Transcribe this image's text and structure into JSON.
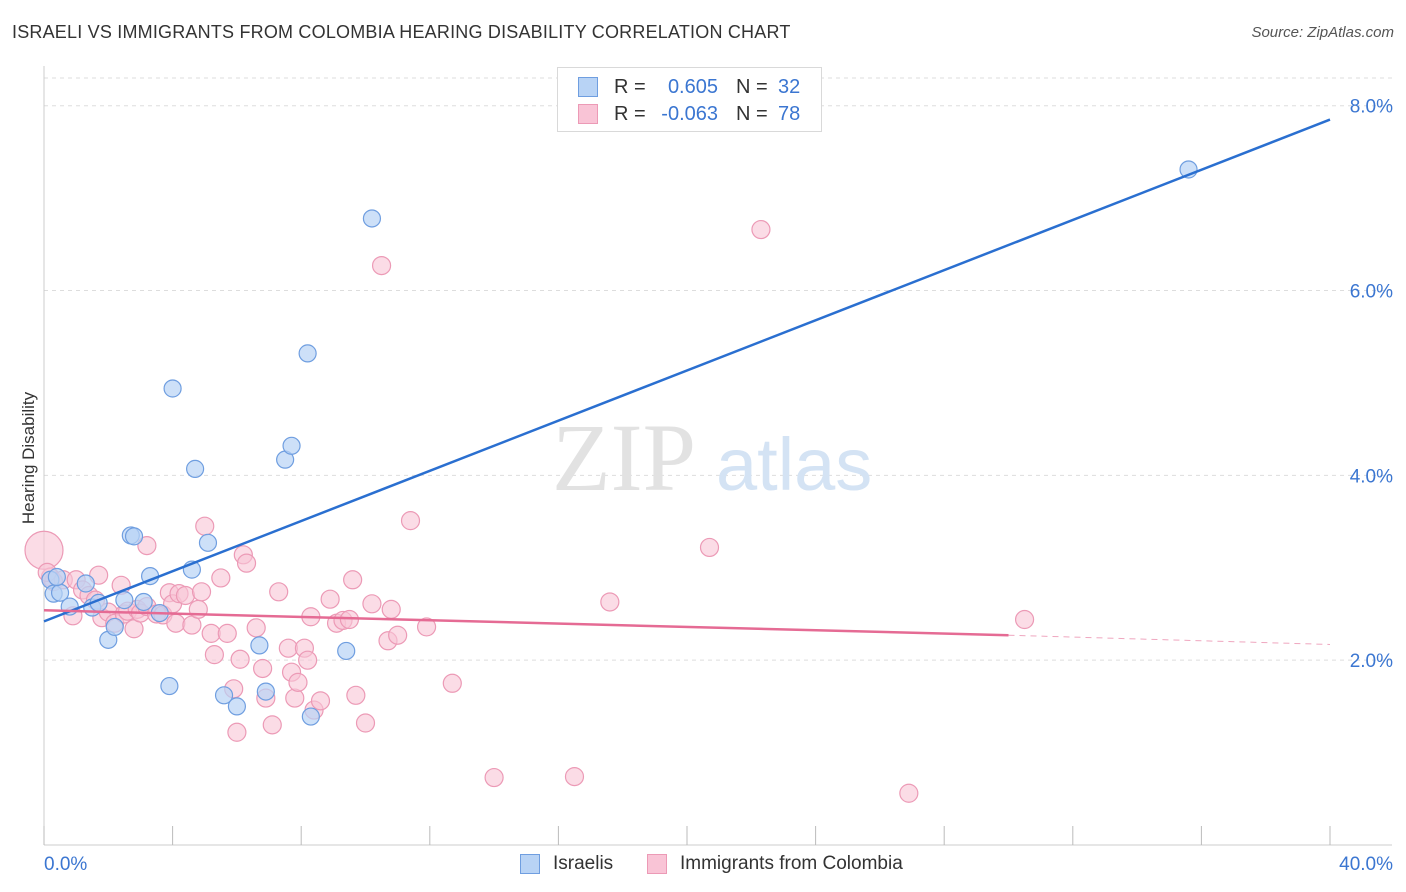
{
  "title": "ISRAELI VS IMMIGRANTS FROM COLOMBIA HEARING DISABILITY CORRELATION CHART",
  "source": "Source: ZipAtlas.com",
  "watermark": {
    "zip": "ZIP",
    "atlas": "atlas"
  },
  "colors": {
    "blue": "#3b76d1",
    "blue_fill": "#b8d3f5",
    "blue_line": "#2a6fd0",
    "pink": "#e8739b",
    "pink_fill": "#f9c4d6",
    "pink_line": "#e56b94",
    "grid": "#dddddd",
    "axis_text": "#3b76d1"
  },
  "legend": {
    "rows": [
      {
        "r_label": "R =",
        "r_value": "0.605",
        "n_label": "N =",
        "n_value": "32"
      },
      {
        "r_label": "R =",
        "r_value": "-0.063",
        "n_label": "N =",
        "n_value": "78"
      }
    ]
  },
  "bottom_legend": {
    "israelis": "Israelis",
    "colombia": "Immigrants from Colombia"
  },
  "chart_data": {
    "type": "scatter",
    "title": "ISRAELI VS IMMIGRANTS FROM COLOMBIA HEARING DISABILITY CORRELATION CHART",
    "xlabel": "",
    "ylabel": "Hearing Disability",
    "xlim": [
      0,
      40
    ],
    "ylim": [
      0,
      8.3
    ],
    "x_ticks_labeled": [
      "0.0%",
      "40.0%"
    ],
    "y_ticks": [
      2.0,
      4.0,
      6.0,
      8.0
    ],
    "y_tick_labels": [
      "2.0%",
      "4.0%",
      "6.0%",
      "8.0%"
    ],
    "grid": true,
    "series": [
      {
        "name": "Israelis",
        "trend": {
          "x": [
            0,
            40
          ],
          "y": [
            2.42,
            7.85
          ]
        },
        "points": [
          [
            0.2,
            2.87
          ],
          [
            0.3,
            2.72
          ],
          [
            0.5,
            2.73
          ],
          [
            0.8,
            2.58
          ],
          [
            1.3,
            2.83
          ],
          [
            1.5,
            2.57
          ],
          [
            1.7,
            2.62
          ],
          [
            2.0,
            2.22
          ],
          [
            2.2,
            2.36
          ],
          [
            2.5,
            2.65
          ],
          [
            2.7,
            3.35
          ],
          [
            2.8,
            3.34
          ],
          [
            3.1,
            2.63
          ],
          [
            3.3,
            2.91
          ],
          [
            3.6,
            2.51
          ],
          [
            3.9,
            1.72
          ],
          [
            4.0,
            4.94
          ],
          [
            4.6,
            2.98
          ],
          [
            4.7,
            4.07
          ],
          [
            5.1,
            3.27
          ],
          [
            5.6,
            1.62
          ],
          [
            6.0,
            1.5
          ],
          [
            6.7,
            2.16
          ],
          [
            6.9,
            1.66
          ],
          [
            7.5,
            4.17
          ],
          [
            7.7,
            4.32
          ],
          [
            8.2,
            5.32
          ],
          [
            8.3,
            1.39
          ],
          [
            9.4,
            2.1
          ],
          [
            10.2,
            6.78
          ],
          [
            35.6,
            7.31
          ],
          [
            0.4,
            2.9
          ]
        ]
      },
      {
        "name": "Immigrants from Colombia",
        "trend": {
          "x": [
            0,
            30
          ],
          "y": [
            2.54,
            2.27
          ]
        },
        "trend_dashed": {
          "x": [
            30,
            40
          ],
          "y": [
            2.27,
            2.17
          ]
        },
        "points": [
          [
            0.0,
            3.19
          ],
          [
            0.2,
            2.9
          ],
          [
            0.3,
            2.85
          ],
          [
            0.6,
            2.87
          ],
          [
            0.9,
            2.48
          ],
          [
            1.0,
            2.87
          ],
          [
            1.2,
            2.76
          ],
          [
            1.4,
            2.7
          ],
          [
            1.6,
            2.65
          ],
          [
            1.7,
            2.92
          ],
          [
            1.8,
            2.46
          ],
          [
            2.0,
            2.52
          ],
          [
            2.2,
            2.4
          ],
          [
            2.4,
            2.81
          ],
          [
            2.5,
            2.5
          ],
          [
            2.6,
            2.53
          ],
          [
            2.8,
            2.34
          ],
          [
            2.9,
            2.55
          ],
          [
            3.0,
            2.51
          ],
          [
            3.2,
            2.58
          ],
          [
            3.2,
            3.24
          ],
          [
            3.5,
            2.5
          ],
          [
            3.7,
            2.49
          ],
          [
            3.9,
            2.73
          ],
          [
            4.0,
            2.61
          ],
          [
            4.1,
            2.4
          ],
          [
            4.2,
            2.72
          ],
          [
            4.4,
            2.7
          ],
          [
            4.6,
            2.38
          ],
          [
            4.8,
            2.55
          ],
          [
            4.9,
            2.74
          ],
          [
            5.0,
            3.45
          ],
          [
            5.2,
            2.29
          ],
          [
            5.3,
            2.06
          ],
          [
            5.5,
            2.89
          ],
          [
            5.7,
            2.29
          ],
          [
            5.9,
            1.69
          ],
          [
            6.0,
            1.22
          ],
          [
            6.1,
            2.01
          ],
          [
            6.2,
            3.14
          ],
          [
            6.3,
            3.05
          ],
          [
            6.6,
            2.35
          ],
          [
            6.8,
            1.91
          ],
          [
            6.9,
            1.59
          ],
          [
            7.1,
            1.3
          ],
          [
            7.3,
            2.74
          ],
          [
            7.6,
            2.13
          ],
          [
            7.7,
            1.87
          ],
          [
            7.8,
            1.59
          ],
          [
            7.9,
            1.76
          ],
          [
            8.1,
            2.13
          ],
          [
            8.2,
            2.0
          ],
          [
            8.3,
            2.47
          ],
          [
            8.4,
            1.46
          ],
          [
            8.6,
            1.56
          ],
          [
            8.9,
            2.66
          ],
          [
            9.1,
            2.4
          ],
          [
            9.3,
            2.43
          ],
          [
            9.5,
            2.44
          ],
          [
            9.6,
            2.87
          ],
          [
            9.7,
            1.62
          ],
          [
            10.0,
            1.32
          ],
          [
            10.2,
            2.61
          ],
          [
            10.5,
            6.27
          ],
          [
            10.7,
            2.21
          ],
          [
            10.8,
            2.55
          ],
          [
            11.0,
            2.27
          ],
          [
            11.4,
            3.51
          ],
          [
            11.9,
            2.36
          ],
          [
            12.7,
            1.75
          ],
          [
            14.0,
            0.73
          ],
          [
            16.5,
            0.74
          ],
          [
            17.6,
            2.63
          ],
          [
            20.7,
            3.22
          ],
          [
            22.3,
            6.66
          ],
          [
            26.9,
            0.56
          ],
          [
            30.5,
            2.44
          ],
          [
            0.1,
            2.95
          ]
        ]
      }
    ]
  }
}
